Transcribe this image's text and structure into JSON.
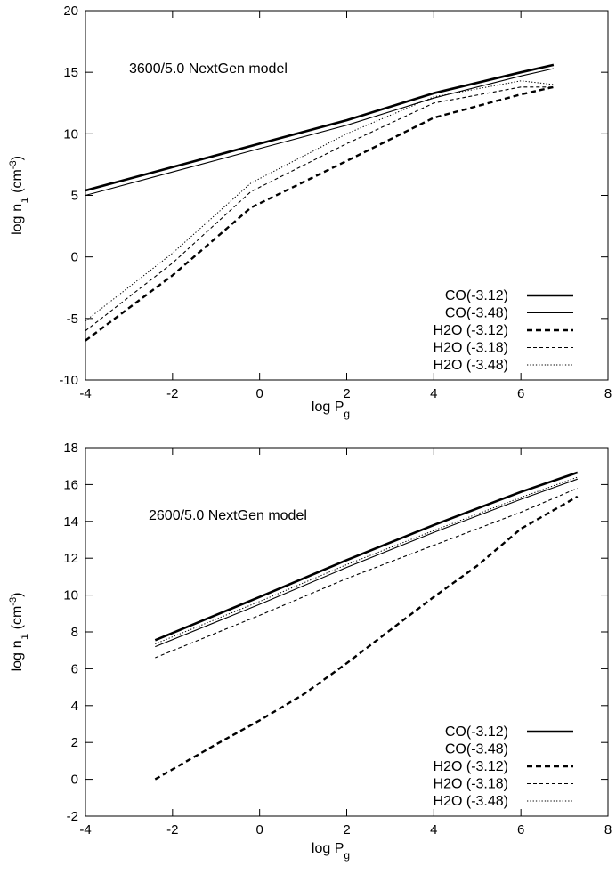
{
  "chart_data": [
    {
      "type": "line",
      "annotation": "3600/5.0 NextGen model",
      "xlabel": {
        "main": "log P",
        "sub": "g"
      },
      "ylabel": {
        "pre": "log ",
        "mono": "n",
        "sub": "i",
        "post": " (cm",
        "sup": "-3",
        "close": ")"
      },
      "xlim": [
        -4,
        8
      ],
      "ylim": [
        -10,
        20
      ],
      "xticks": [
        -4,
        -2,
        0,
        2,
        4,
        6,
        8
      ],
      "yticks": [
        -10,
        -5,
        0,
        5,
        10,
        15,
        20
      ],
      "legend_position": "bottom-right",
      "series": [
        {
          "name": "CO(-3.12)",
          "style": "thick-solid",
          "x": [
            -4,
            -2,
            0,
            2,
            4,
            6,
            6.75
          ],
          "y": [
            5.4,
            7.3,
            9.2,
            11.1,
            13.3,
            15.0,
            15.6
          ]
        },
        {
          "name": "CO(-3.48)",
          "style": "thin-solid",
          "x": [
            -4,
            -2,
            0,
            2,
            4,
            6,
            6.75
          ],
          "y": [
            5.0,
            6.9,
            8.8,
            10.7,
            12.9,
            14.7,
            15.3
          ]
        },
        {
          "name": "H2O (-3.12)",
          "style": "thick-dash",
          "x": [
            -4,
            -2,
            -0.2,
            2,
            4,
            6,
            6.75
          ],
          "y": [
            -6.8,
            -1.5,
            4.0,
            7.8,
            11.3,
            13.2,
            13.8
          ]
        },
        {
          "name": "H2O (-3.18)",
          "style": "thin-dash",
          "x": [
            -4,
            -2,
            -0.2,
            2,
            4,
            6,
            6.75
          ],
          "y": [
            -6.0,
            -0.5,
            5.3,
            9.2,
            12.5,
            13.8,
            13.8
          ]
        },
        {
          "name": "H2O (-3.48)",
          "style": "dotted",
          "x": [
            -4,
            -2,
            -0.2,
            2,
            4,
            6,
            6.75
          ],
          "y": [
            -5.2,
            0.3,
            6.0,
            10.0,
            13.0,
            14.3,
            14.0
          ]
        }
      ]
    },
    {
      "type": "line",
      "annotation": "2600/5.0 NextGen model",
      "xlabel": {
        "main": "log P",
        "sub": "g"
      },
      "ylabel": {
        "pre": "log ",
        "mono": "n",
        "sub": "i",
        "post": " (cm",
        "sup": "-3",
        "close": ")"
      },
      "xlim": [
        -4,
        8
      ],
      "ylim": [
        -2,
        18
      ],
      "xticks": [
        -4,
        -2,
        0,
        2,
        4,
        6,
        8
      ],
      "yticks": [
        -2,
        0,
        2,
        4,
        6,
        8,
        10,
        12,
        14,
        16,
        18
      ],
      "legend_position": "bottom-right",
      "series": [
        {
          "name": "CO(-3.12)",
          "style": "thick-solid",
          "x": [
            -2.4,
            0,
            2,
            4,
            6,
            7.3
          ],
          "y": [
            7.55,
            9.9,
            11.9,
            13.8,
            15.6,
            16.65
          ]
        },
        {
          "name": "CO(-3.48)",
          "style": "thin-solid",
          "x": [
            -2.4,
            0,
            2,
            4,
            6,
            7.3
          ],
          "y": [
            7.2,
            9.5,
            11.5,
            13.4,
            15.2,
            16.3
          ]
        },
        {
          "name": "H2O (-3.12)",
          "style": "thick-dash",
          "x": [
            -2.4,
            -1,
            0,
            1,
            2,
            3,
            4,
            5,
            6,
            7.3
          ],
          "y": [
            0.0,
            1.9,
            3.2,
            4.6,
            6.3,
            8.1,
            9.9,
            11.6,
            13.6,
            15.35
          ]
        },
        {
          "name": "H2O (-3.18)",
          "style": "thin-dash",
          "x": [
            -2.4,
            0,
            2,
            4,
            6,
            7.3
          ],
          "y": [
            6.6,
            8.9,
            10.9,
            12.7,
            14.5,
            15.8
          ]
        },
        {
          "name": "H2O (-3.48)",
          "style": "dotted",
          "x": [
            -2.4,
            0,
            2,
            4,
            6,
            7.3
          ],
          "y": [
            7.35,
            9.65,
            11.65,
            13.5,
            15.3,
            16.4
          ]
        }
      ]
    }
  ]
}
